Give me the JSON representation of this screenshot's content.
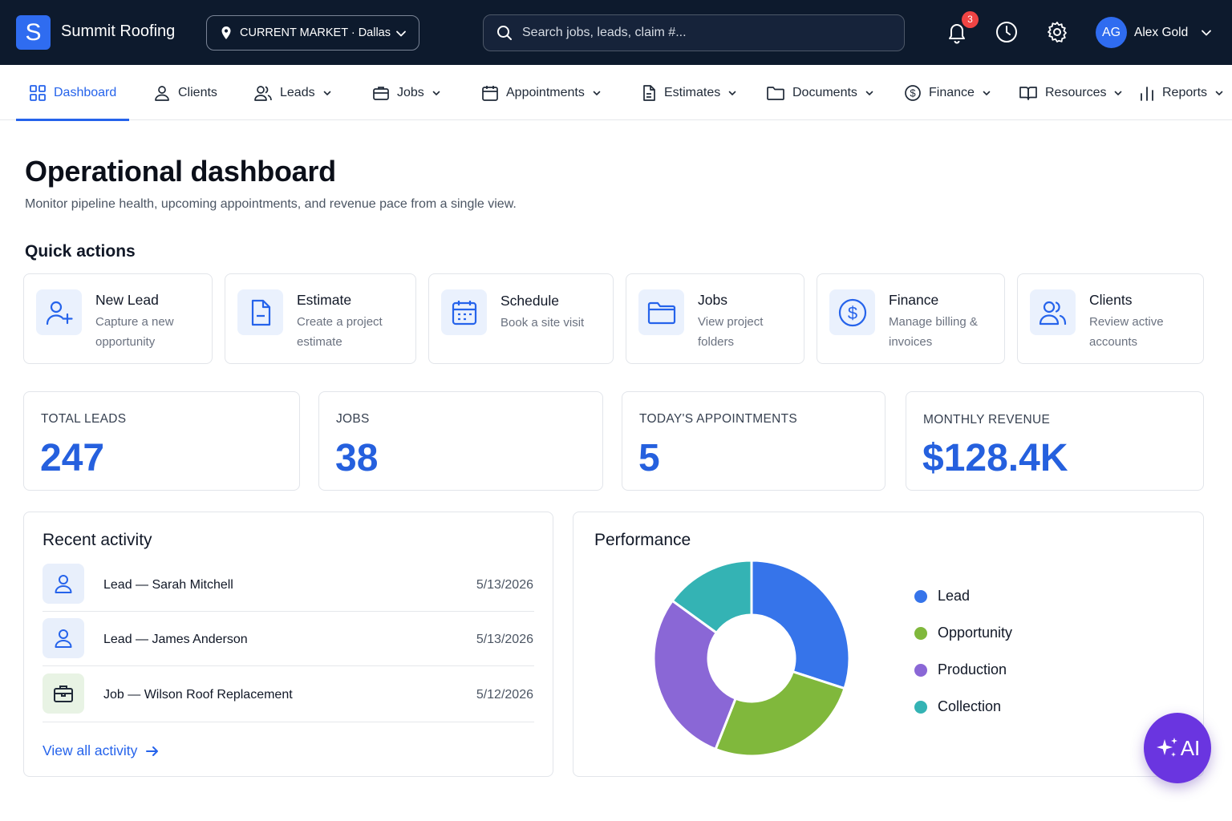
{
  "app": {
    "logo_letter": "S",
    "brand": "Summit Roofing"
  },
  "market": {
    "label": "CURRENT MARKET · Dallas"
  },
  "search": {
    "placeholder": "Search jobs, leads, claim #..."
  },
  "header": {
    "notification_count": "3",
    "user_initials": "AG",
    "user_name": "Alex Gold"
  },
  "nav": {
    "items": [
      {
        "label": "Dashboard",
        "icon": "grid-icon",
        "active": true
      },
      {
        "label": "Clients",
        "icon": "user-icon"
      },
      {
        "label": "Leads",
        "icon": "users-icon"
      },
      {
        "label": "Jobs",
        "icon": "briefcase-icon"
      },
      {
        "label": "Appointments",
        "icon": "calendar-icon"
      },
      {
        "label": "Estimates",
        "icon": "file-icon"
      },
      {
        "label": "Documents",
        "icon": "folder-icon"
      },
      {
        "label": "Finance",
        "icon": "dollar-circle-icon"
      },
      {
        "label": "Resources",
        "icon": "book-icon"
      },
      {
        "label": "Reports",
        "icon": "bar-chart-icon"
      }
    ]
  },
  "page": {
    "title": "Operational dashboard",
    "subtitle": "Monitor pipeline health, upcoming appointments, and revenue pace from a single view.",
    "quick_actions_title": "Quick actions"
  },
  "quick_actions": [
    {
      "name": "New Lead",
      "desc": "Capture a new opportunity",
      "icon": "user-plus-icon"
    },
    {
      "name": "Estimate",
      "desc": "Create a project estimate",
      "icon": "file-icon"
    },
    {
      "name": "Schedule",
      "desc": "Book a site visit",
      "icon": "calendar-icon"
    },
    {
      "name": "Jobs",
      "desc": "View project folders",
      "icon": "folder-icon"
    },
    {
      "name": "Finance",
      "desc": "Manage billing & invoices",
      "icon": "dollar-circle-icon"
    },
    {
      "name": "Clients",
      "desc": "Review active accounts",
      "icon": "users-icon"
    }
  ],
  "stats": [
    {
      "label": "TOTAL LEADS",
      "value": "247"
    },
    {
      "label": "JOBS",
      "value": "38"
    },
    {
      "label": "TODAY'S APPOINTMENTS",
      "value": "5"
    },
    {
      "label": "MONTHLY REVENUE",
      "value": "$128.4K"
    }
  ],
  "activity": {
    "title": "Recent activity",
    "items": [
      {
        "text": "Lead — Sarah Mitchell",
        "date": "5/13/2026",
        "type": "lead"
      },
      {
        "text": "Lead — James Anderson",
        "date": "5/13/2026",
        "type": "lead"
      },
      {
        "text": "Job — Wilson Roof Replacement",
        "date": "5/12/2026",
        "type": "job"
      }
    ],
    "view_all": "View all activity"
  },
  "performance": {
    "title": "Performance"
  },
  "chart_data": {
    "type": "pie",
    "donut": true,
    "categories": [
      "Lead",
      "Opportunity",
      "Production",
      "Collection"
    ],
    "values": [
      30,
      26,
      29,
      15
    ],
    "colors": [
      "#3674ea",
      "#80b83c",
      "#8a67d6",
      "#34b3b4"
    ]
  },
  "fab": {
    "label": "AI"
  }
}
